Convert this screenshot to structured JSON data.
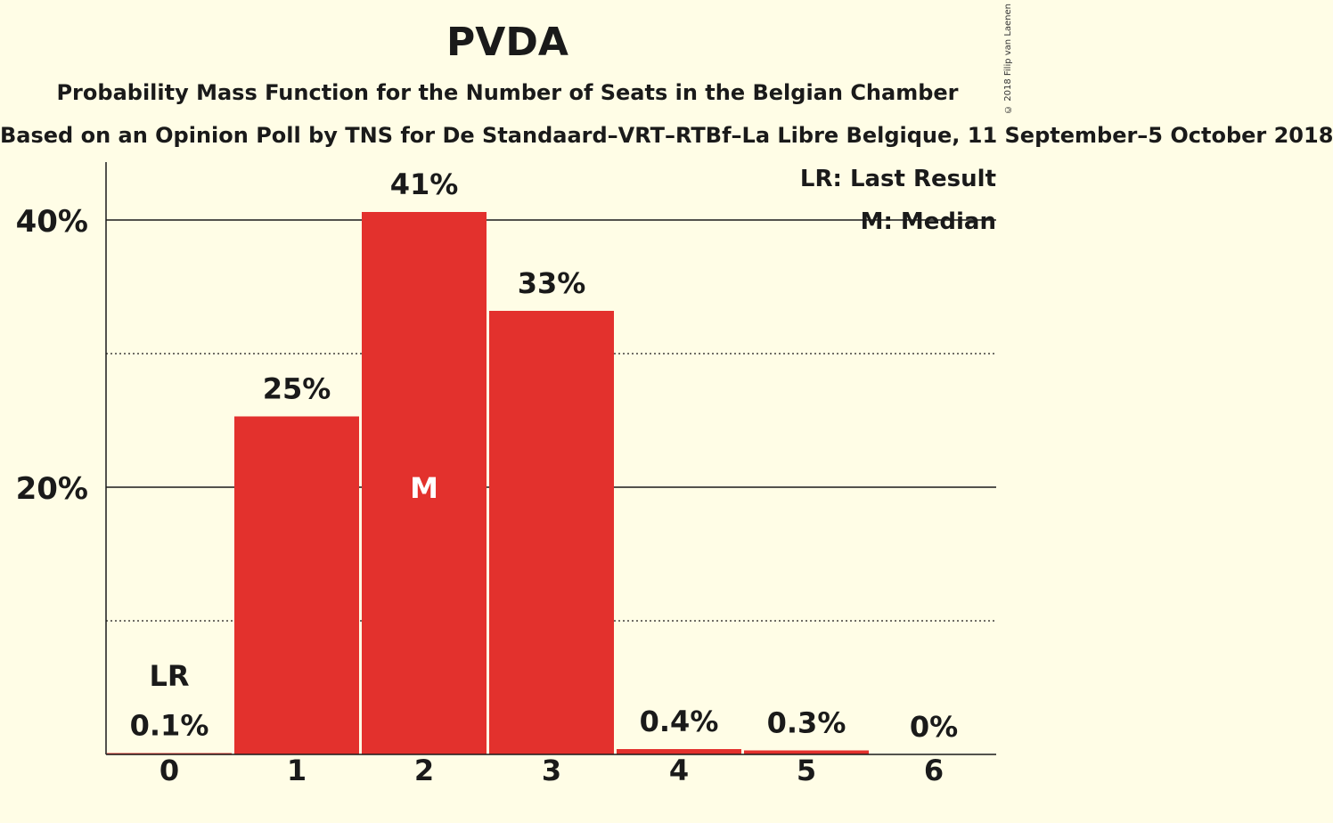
{
  "chart_data": {
    "type": "bar",
    "title": "PVDA",
    "subtitle": "Probability Mass Function for the Number of Seats in the Belgian Chamber",
    "subsubtitle": "Based on an Opinion Poll by TNS for De Standaard–VRT–RTBf–La Libre Belgique, 11 September–5 October 2018",
    "copyright": "© 2018 Filip van Laenen",
    "categories": [
      "0",
      "1",
      "2",
      "3",
      "4",
      "5",
      "6"
    ],
    "values": [
      0.1,
      25.3,
      40.6,
      33.2,
      0.4,
      0.3,
      0
    ],
    "value_labels": [
      "0.1%",
      "25%",
      "41%",
      "33%",
      "0.4%",
      "0.3%",
      "0%"
    ],
    "yticks": [
      20,
      40
    ],
    "ytick_labels": [
      "20%",
      "40%"
    ],
    "minor_gridlines": [
      10,
      30
    ],
    "ylim": [
      0,
      44
    ],
    "last_result_index": 0,
    "last_result_marker": "LR",
    "median_index": 2,
    "median_marker": "M",
    "legend": [
      "LR: Last Result",
      "M: Median"
    ],
    "legend_position": "top-right",
    "bar_color": "#E3312D",
    "grid": true
  }
}
